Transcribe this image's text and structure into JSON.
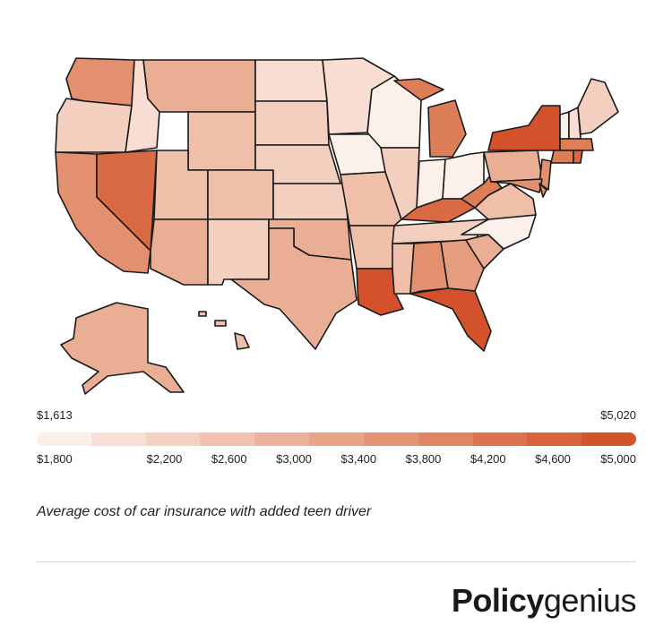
{
  "legend": {
    "min_label": "$1,613",
    "max_label": "$5,020",
    "ticks": [
      "$1,800",
      "$2,200",
      "$2,600",
      "$3,000",
      "$3,400",
      "$3,800",
      "$4,200",
      "$4,600",
      "$5,000"
    ],
    "ramp_colors": [
      "#fcefe9",
      "#f8e0d6",
      "#f5d1c3",
      "#f1c2b0",
      "#edb29c",
      "#e9a389",
      "#e59476",
      "#e18463",
      "#dc7350",
      "#d8633d",
      "#d4532a"
    ]
  },
  "caption": "Average cost of car insurance with added teen driver",
  "brand": {
    "bold": "Policy",
    "light": "genius"
  },
  "shades": {
    "c0": "#fcf0eb",
    "c1": "#f7ddd2",
    "c2": "#f3cfbf",
    "c3": "#efbfa9",
    "c4": "#eaae94",
    "c5": "#e69d7f",
    "c6": "#e2906f",
    "c7": "#dd7e59",
    "c8": "#d86b44",
    "c9": "#d4522b"
  }
}
